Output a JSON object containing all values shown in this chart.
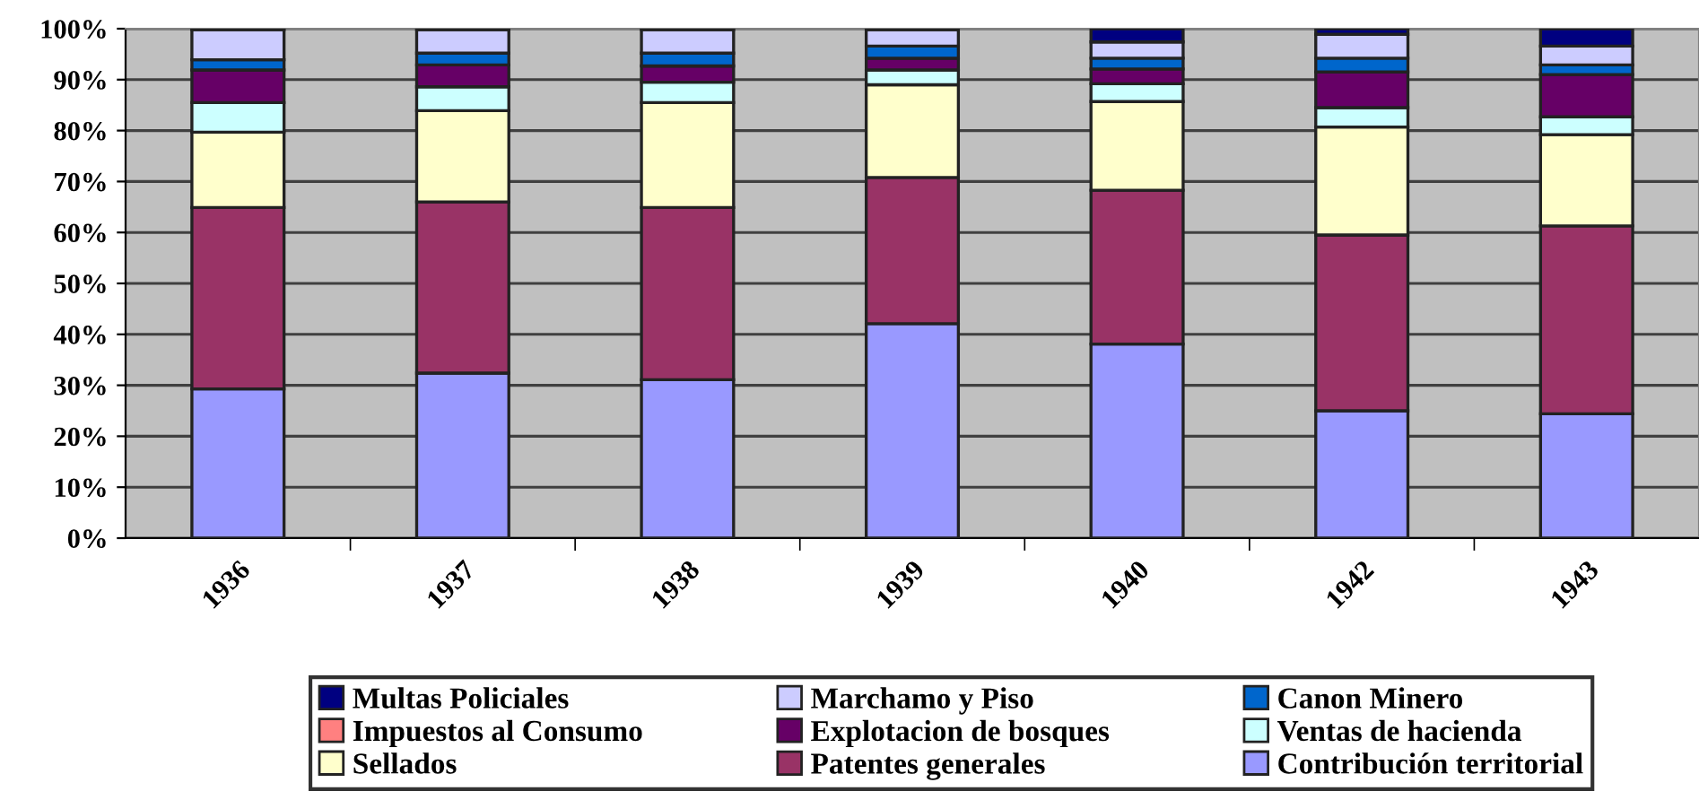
{
  "chart_data": {
    "type": "bar",
    "stacked": true,
    "categories": [
      "1936",
      "1937",
      "1938",
      "1939",
      "1940",
      "1942",
      "1943"
    ],
    "series": [
      {
        "name": "Contribución territorial",
        "color": "#9999ff",
        "values": [
          29.3,
          32.4,
          31.1,
          42.1,
          38.1,
          25.0,
          24.4
        ]
      },
      {
        "name": "Patentes generales",
        "color": "#993366",
        "values": [
          35.6,
          33.6,
          33.8,
          28.7,
          30.2,
          34.5,
          36.9
        ]
      },
      {
        "name": "Sellados",
        "color": "#ffffcc",
        "values": [
          14.8,
          17.9,
          20.6,
          18.2,
          17.4,
          21.2,
          17.9
        ]
      },
      {
        "name": "Ventas de hacienda",
        "color": "#ccffff",
        "values": [
          5.8,
          4.7,
          4.0,
          2.9,
          3.5,
          3.8,
          3.5
        ]
      },
      {
        "name": "Explotacion de bosques",
        "color": "#660066",
        "values": [
          6.4,
          4.3,
          3.2,
          2.3,
          2.9,
          7.0,
          8.3
        ]
      },
      {
        "name": "Impuestos al Consumo",
        "color": "#ff8080",
        "values": [
          null,
          null,
          null,
          null,
          null,
          null,
          null
        ]
      },
      {
        "name": "Canon Minero",
        "color": "#0066cc",
        "values": [
          2.0,
          2.3,
          2.5,
          2.4,
          2.1,
          2.7,
          1.9
        ]
      },
      {
        "name": "Marchamo y Piso",
        "color": "#ccccff",
        "values": [
          5.9,
          4.6,
          4.6,
          3.2,
          3.2,
          4.7,
          3.7
        ]
      },
      {
        "name": "Multas Policiales",
        "color": "#000080",
        "values": [
          0.2,
          0.2,
          0.2,
          0.2,
          2.6,
          1.1,
          3.4
        ]
      }
    ],
    "ylim": [
      0,
      100
    ],
    "yticks": [
      {
        "value": 0,
        "label": "0%"
      },
      {
        "value": 10,
        "label": "10%"
      },
      {
        "value": 20,
        "label": "20%"
      },
      {
        "value": 30,
        "label": "30%"
      },
      {
        "value": 40,
        "label": "40%"
      },
      {
        "value": 50,
        "label": "50%"
      },
      {
        "value": 60,
        "label": "60%"
      },
      {
        "value": 70,
        "label": "70%"
      },
      {
        "value": 80,
        "label": "80%"
      },
      {
        "value": 90,
        "label": "90%"
      },
      {
        "value": 100,
        "label": "100%"
      }
    ],
    "grid": "y",
    "legend": "bottom"
  }
}
